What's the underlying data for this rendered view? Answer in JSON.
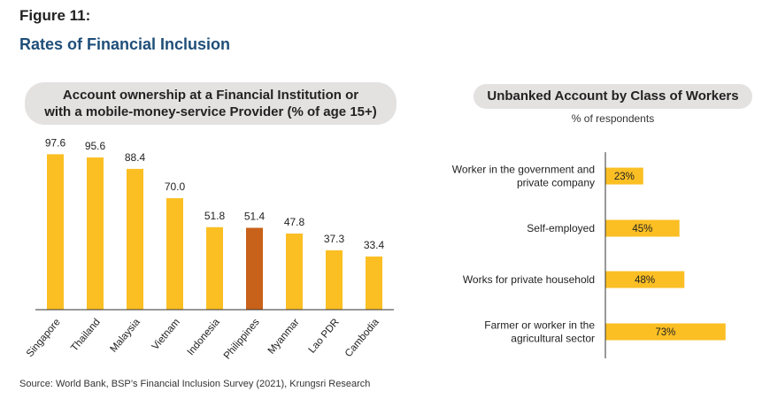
{
  "figure_label": "Figure 11:",
  "figure_title": "Rates of Financial Inclusion",
  "source": "Source: World Bank, BSP’s Financial Inclusion Survey (2021), Krungsri Research",
  "colors": {
    "bar": "#fbbf24",
    "highlight": "#c8611a",
    "axis": "#333333"
  },
  "chart_data": [
    {
      "type": "bar",
      "title_line1": "Account ownership at a Financial Institution or",
      "title_line2": "with a mobile-money-service Provider (% of age 15+)",
      "categories": [
        "Singapore",
        "Thailand",
        "Malaysia",
        "Vietnam",
        "Indonesia",
        "Philippines",
        "Myanmar",
        "Lao PDR",
        "Cambodia"
      ],
      "values": [
        97.6,
        95.6,
        88.4,
        70.0,
        51.8,
        51.4,
        47.8,
        37.3,
        33.4
      ],
      "value_labels": [
        "97.6",
        "95.6",
        "88.4",
        "70.0",
        "51.8",
        "51.4",
        "47.8",
        "37.3",
        "33.4"
      ],
      "highlight": "Philippines",
      "ylim": [
        0,
        100
      ]
    },
    {
      "type": "bar",
      "orientation": "horizontal",
      "title": "Unbanked Account by Class of Workers",
      "subtitle": "% of respondents",
      "categories": [
        [
          "Worker in the government and",
          "private company"
        ],
        [
          "Self-employed"
        ],
        [
          "Works for private household"
        ],
        [
          "Farmer or worker in the",
          "agricultural sector"
        ]
      ],
      "values": [
        23,
        45,
        48,
        73
      ],
      "value_labels": [
        "23%",
        "45%",
        "48%",
        "73%"
      ],
      "xlim": [
        0,
        100
      ]
    }
  ]
}
